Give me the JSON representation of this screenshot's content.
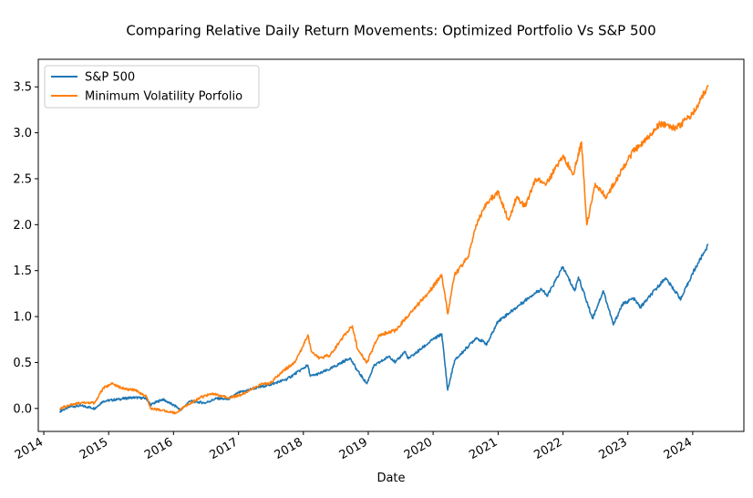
{
  "chart_data": {
    "type": "line",
    "title": "Comparing Relative Daily Return Movements: Optimized Portfolio Vs S&P 500",
    "xlabel": "Date",
    "ylabel": "",
    "xlim": [
      "2013-12-01",
      "2024-10-15"
    ],
    "ylim": [
      -0.25,
      3.8
    ],
    "x_ticks": [
      "2014-01-01",
      "2015-01-01",
      "2016-01-01",
      "2017-01-01",
      "2018-01-01",
      "2019-01-01",
      "2020-01-01",
      "2021-01-01",
      "2022-01-01",
      "2023-01-01",
      "2024-01-01"
    ],
    "x_tick_labels": [
      "2014",
      "2015",
      "2016",
      "2017",
      "2018",
      "2019",
      "2020",
      "2021",
      "2022",
      "2023",
      "2024"
    ],
    "y_ticks": [
      0.0,
      0.5,
      1.0,
      1.5,
      2.0,
      2.5,
      3.0,
      3.5
    ],
    "y_tick_labels": [
      "0.0",
      "0.5",
      "1.0",
      "1.5",
      "2.0",
      "2.5",
      "3.0",
      "3.5"
    ],
    "grid": false,
    "legend_position": "top-left",
    "series": [
      {
        "name": "S&P 500",
        "color": "#1f77b4",
        "points": [
          [
            "2014-04-01",
            -0.03
          ],
          [
            "2014-06-01",
            0.02
          ],
          [
            "2014-08-01",
            0.03
          ],
          [
            "2014-10-15",
            0.0
          ],
          [
            "2014-12-01",
            0.08
          ],
          [
            "2015-03-01",
            0.1
          ],
          [
            "2015-05-15",
            0.12
          ],
          [
            "2015-08-01",
            0.11
          ],
          [
            "2015-08-25",
            0.04
          ],
          [
            "2015-11-01",
            0.1
          ],
          [
            "2016-01-15",
            0.02
          ],
          [
            "2016-02-11",
            -0.02
          ],
          [
            "2016-04-01",
            0.08
          ],
          [
            "2016-06-27",
            0.06
          ],
          [
            "2016-09-01",
            0.11
          ],
          [
            "2016-11-01",
            0.1
          ],
          [
            "2017-01-01",
            0.17
          ],
          [
            "2017-04-01",
            0.22
          ],
          [
            "2017-07-01",
            0.26
          ],
          [
            "2017-10-01",
            0.32
          ],
          [
            "2018-01-26",
            0.47
          ],
          [
            "2018-02-09",
            0.35
          ],
          [
            "2018-04-01",
            0.38
          ],
          [
            "2018-06-01",
            0.43
          ],
          [
            "2018-09-20",
            0.55
          ],
          [
            "2018-10-29",
            0.42
          ],
          [
            "2018-12-24",
            0.27
          ],
          [
            "2019-02-01",
            0.46
          ],
          [
            "2019-04-30",
            0.57
          ],
          [
            "2019-06-03",
            0.5
          ],
          [
            "2019-07-26",
            0.62
          ],
          [
            "2019-08-15",
            0.54
          ],
          [
            "2019-12-31",
            0.75
          ],
          [
            "2020-02-19",
            0.81
          ],
          [
            "2020-03-23",
            0.2
          ],
          [
            "2020-05-01",
            0.52
          ],
          [
            "2020-08-31",
            0.77
          ],
          [
            "2020-10-30",
            0.7
          ],
          [
            "2021-01-01",
            0.95
          ],
          [
            "2021-04-01",
            1.08
          ],
          [
            "2021-07-01",
            1.22
          ],
          [
            "2021-09-01",
            1.3
          ],
          [
            "2021-10-04",
            1.22
          ],
          [
            "2021-12-31",
            1.54
          ],
          [
            "2022-03-08",
            1.28
          ],
          [
            "2022-03-29",
            1.43
          ],
          [
            "2022-06-16",
            0.98
          ],
          [
            "2022-08-16",
            1.28
          ],
          [
            "2022-10-12",
            0.91
          ],
          [
            "2022-11-30",
            1.13
          ],
          [
            "2023-02-01",
            1.2
          ],
          [
            "2023-03-13",
            1.1
          ],
          [
            "2023-07-31",
            1.42
          ],
          [
            "2023-10-27",
            1.19
          ],
          [
            "2023-12-31",
            1.47
          ],
          [
            "2024-03-28",
            1.78
          ]
        ]
      },
      {
        "name": "Minimum Volatility Porfolio",
        "color": "#ff7f0e",
        "points": [
          [
            "2014-04-01",
            0.0
          ],
          [
            "2014-06-01",
            0.04
          ],
          [
            "2014-08-01",
            0.06
          ],
          [
            "2014-10-15",
            0.06
          ],
          [
            "2014-12-01",
            0.22
          ],
          [
            "2015-01-20",
            0.27
          ],
          [
            "2015-04-01",
            0.21
          ],
          [
            "2015-06-01",
            0.2
          ],
          [
            "2015-08-01",
            0.13
          ],
          [
            "2015-08-25",
            0.0
          ],
          [
            "2015-11-01",
            -0.02
          ],
          [
            "2016-01-15",
            -0.05
          ],
          [
            "2016-03-01",
            0.02
          ],
          [
            "2016-06-01",
            0.12
          ],
          [
            "2016-08-01",
            0.16
          ],
          [
            "2016-11-10",
            0.12
          ],
          [
            "2017-01-01",
            0.14
          ],
          [
            "2017-03-01",
            0.19
          ],
          [
            "2017-05-01",
            0.26
          ],
          [
            "2017-07-01",
            0.28
          ],
          [
            "2017-09-01",
            0.4
          ],
          [
            "2017-11-15",
            0.5
          ],
          [
            "2018-01-26",
            0.8
          ],
          [
            "2018-02-15",
            0.62
          ],
          [
            "2018-04-01",
            0.55
          ],
          [
            "2018-06-01",
            0.58
          ],
          [
            "2018-08-01",
            0.75
          ],
          [
            "2018-10-03",
            0.9
          ],
          [
            "2018-11-01",
            0.65
          ],
          [
            "2018-12-24",
            0.5
          ],
          [
            "2019-03-01",
            0.8
          ],
          [
            "2019-06-01",
            0.85
          ],
          [
            "2019-09-01",
            1.05
          ],
          [
            "2019-12-01",
            1.25
          ],
          [
            "2020-02-19",
            1.45
          ],
          [
            "2020-03-23",
            1.03
          ],
          [
            "2020-05-01",
            1.45
          ],
          [
            "2020-07-15",
            1.65
          ],
          [
            "2020-09-01",
            2.0
          ],
          [
            "2020-11-01",
            2.25
          ],
          [
            "2021-01-01",
            2.35
          ],
          [
            "2021-03-01",
            2.05
          ],
          [
            "2021-04-15",
            2.3
          ],
          [
            "2021-06-01",
            2.2
          ],
          [
            "2021-08-01",
            2.5
          ],
          [
            "2021-10-01",
            2.45
          ],
          [
            "2021-12-31",
            2.75
          ],
          [
            "2022-03-01",
            2.55
          ],
          [
            "2022-04-15",
            2.9
          ],
          [
            "2022-05-15",
            2.0
          ],
          [
            "2022-07-01",
            2.45
          ],
          [
            "2022-09-01",
            2.3
          ],
          [
            "2022-12-01",
            2.6
          ],
          [
            "2023-02-01",
            2.8
          ],
          [
            "2023-04-01",
            2.9
          ],
          [
            "2023-07-01",
            3.1
          ],
          [
            "2023-10-01",
            3.05
          ],
          [
            "2023-12-31",
            3.2
          ],
          [
            "2024-03-28",
            3.52
          ]
        ]
      }
    ]
  }
}
